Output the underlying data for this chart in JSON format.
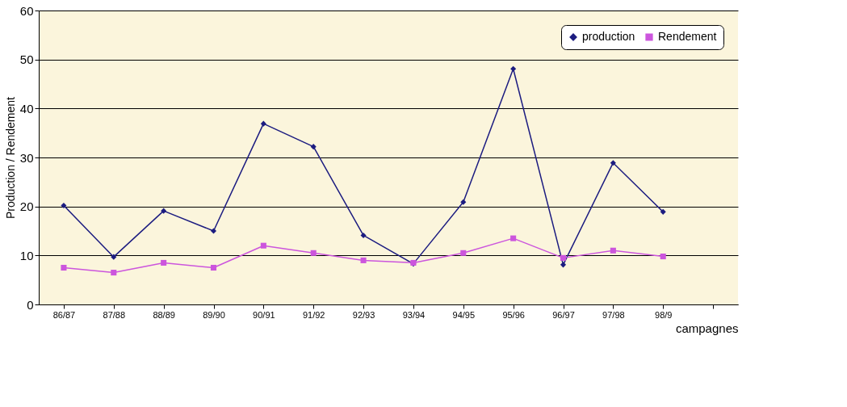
{
  "chart_data": {
    "type": "line",
    "xlabel": "campagnes",
    "ylabel": "Production / Rendement",
    "categories": [
      "86/87",
      "87/88",
      "88/89",
      "89/90",
      "90/91",
      "91/92",
      "92/93",
      "93/94",
      "94/95",
      "95/96",
      "96/97",
      "97/98",
      "98/9",
      null
    ],
    "series": [
      {
        "name": "production",
        "color": "#1c1c80",
        "marker": "diamond",
        "values": [
          20.2,
          9.7,
          19.1,
          15,
          36.9,
          32.2,
          14.1,
          8.3,
          20.9,
          48.1,
          8.1,
          28.9,
          18.9,
          null
        ]
      },
      {
        "name": "Rendement",
        "color": "#cc55dd",
        "marker": "square",
        "values": [
          7.5,
          6.5,
          8.5,
          7.5,
          12,
          10.5,
          9,
          8.5,
          10.5,
          13.5,
          9.5,
          11,
          9.8,
          null
        ]
      }
    ],
    "ylim": [
      0,
      60
    ],
    "yticks": [
      0,
      10,
      20,
      30,
      40,
      50,
      60
    ],
    "grid": "y",
    "legend": "top right",
    "line_style": "solid"
  }
}
